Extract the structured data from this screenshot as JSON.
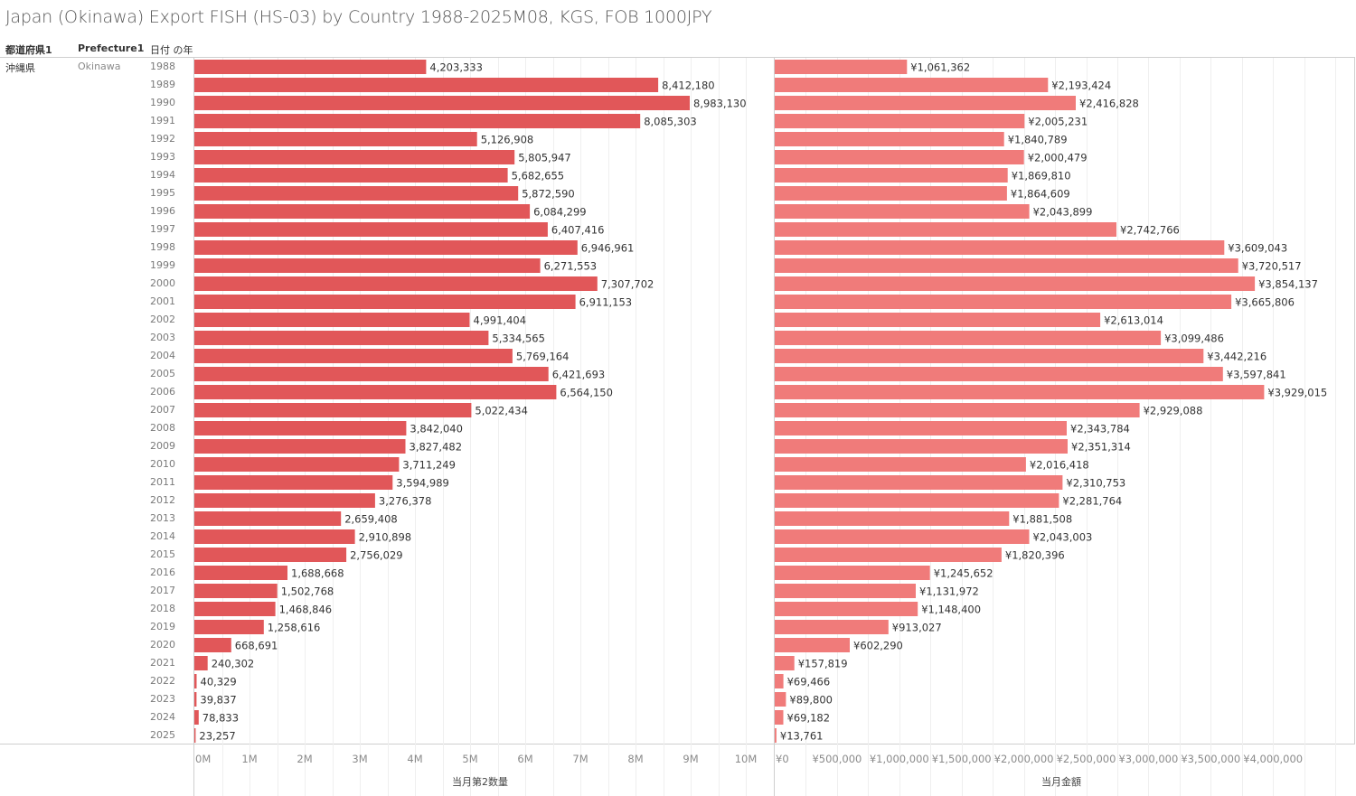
{
  "title": "Japan (Okinawa) Export FISH (HS-03) by Country 1988-2025M08, KGS, FOB 1000JPY",
  "headers": {
    "col1": "都道府県1",
    "col2": "Prefecture1",
    "col3": "日付 の年"
  },
  "row": {
    "prefecture_jp": "沖縄県",
    "prefecture_en": "Okinawa"
  },
  "colors": {
    "quantity_bar": "#e15759",
    "value_bar": "#f07b7a"
  },
  "chart_data": [
    {
      "type": "bar",
      "orientation": "horizontal",
      "title": "",
      "xlabel": "当月第2数量",
      "ylabel": "日付 の年",
      "xlim": [
        0,
        10500000
      ],
      "ticks": [
        "0M",
        "1M",
        "2M",
        "3M",
        "4M",
        "5M",
        "6M",
        "7M",
        "8M",
        "9M",
        "10M"
      ],
      "tick_values": [
        0,
        1000000,
        2000000,
        3000000,
        4000000,
        5000000,
        6000000,
        7000000,
        8000000,
        9000000,
        10000000
      ],
      "grid": true,
      "categories": [
        "1988",
        "1989",
        "1990",
        "1991",
        "1992",
        "1993",
        "1994",
        "1995",
        "1996",
        "1997",
        "1998",
        "1999",
        "2000",
        "2001",
        "2002",
        "2003",
        "2004",
        "2005",
        "2006",
        "2007",
        "2008",
        "2009",
        "2010",
        "2011",
        "2012",
        "2013",
        "2014",
        "2015",
        "2016",
        "2017",
        "2018",
        "2019",
        "2020",
        "2021",
        "2022",
        "2023",
        "2024",
        "2025"
      ],
      "values": [
        4203333,
        8412180,
        8983130,
        8085303,
        5126908,
        5805947,
        5682655,
        5872590,
        6084299,
        6407416,
        6946961,
        6271553,
        7307702,
        6911153,
        4991404,
        5334565,
        5769164,
        6421693,
        6564150,
        5022434,
        3842040,
        3827482,
        3711249,
        3594989,
        3276378,
        2659408,
        2910898,
        2756029,
        1688668,
        1502768,
        1468846,
        1258616,
        668691,
        240302,
        40329,
        39837,
        78833,
        23257
      ],
      "labels": [
        "4,203,333",
        "8,412,180",
        "8,983,130",
        "8,085,303",
        "5,126,908",
        "5,805,947",
        "5,682,655",
        "5,872,590",
        "6,084,299",
        "6,407,416",
        "6,946,961",
        "6,271,553",
        "7,307,702",
        "6,911,153",
        "4,991,404",
        "5,334,565",
        "5,769,164",
        "6,421,693",
        "6,564,150",
        "5,022,434",
        "3,842,040",
        "3,827,482",
        "3,711,249",
        "3,594,989",
        "3,276,378",
        "2,659,408",
        "2,910,898",
        "2,756,029",
        "1,688,668",
        "1,502,768",
        "1,468,846",
        "1,258,616",
        "668,691",
        "240,302",
        "40,329",
        "39,837",
        "78,833",
        "23,257"
      ]
    },
    {
      "type": "bar",
      "orientation": "horizontal",
      "title": "",
      "xlabel": "当月金額",
      "ylabel": "日付 の年",
      "xlim": [
        0,
        4650000
      ],
      "ticks": [
        "¥0",
        "¥500,000",
        "¥1,000,000",
        "¥1,500,000",
        "¥2,000,000",
        "¥2,500,000",
        "¥3,000,000",
        "¥3,500,000",
        "¥4,000,000"
      ],
      "tick_values": [
        0,
        500000,
        1000000,
        1500000,
        2000000,
        2500000,
        3000000,
        3500000,
        4000000
      ],
      "grid": true,
      "categories": [
        "1988",
        "1989",
        "1990",
        "1991",
        "1992",
        "1993",
        "1994",
        "1995",
        "1996",
        "1997",
        "1998",
        "1999",
        "2000",
        "2001",
        "2002",
        "2003",
        "2004",
        "2005",
        "2006",
        "2007",
        "2008",
        "2009",
        "2010",
        "2011",
        "2012",
        "2013",
        "2014",
        "2015",
        "2016",
        "2017",
        "2018",
        "2019",
        "2020",
        "2021",
        "2022",
        "2023",
        "2024",
        "2025"
      ],
      "values": [
        1061362,
        2193424,
        2416828,
        2005231,
        1840789,
        2000479,
        1869810,
        1864609,
        2043899,
        2742766,
        3609043,
        3720517,
        3854137,
        3665806,
        2613014,
        3099486,
        3442216,
        3597841,
        3929015,
        2929088,
        2343784,
        2351314,
        2016418,
        2310753,
        2281764,
        1881508,
        2043003,
        1820396,
        1245652,
        1131972,
        1148400,
        913027,
        602290,
        157819,
        69466,
        89800,
        69182,
        13761
      ],
      "labels": [
        "¥1,061,362",
        "¥2,193,424",
        "¥2,416,828",
        "¥2,005,231",
        "¥1,840,789",
        "¥2,000,479",
        "¥1,869,810",
        "¥1,864,609",
        "¥2,043,899",
        "¥2,742,766",
        "¥3,609,043",
        "¥3,720,517",
        "¥3,854,137",
        "¥3,665,806",
        "¥2,613,014",
        "¥3,099,486",
        "¥3,442,216",
        "¥3,597,841",
        "¥3,929,015",
        "¥2,929,088",
        "¥2,343,784",
        "¥2,351,314",
        "¥2,016,418",
        "¥2,310,753",
        "¥2,281,764",
        "¥1,881,508",
        "¥2,043,003",
        "¥1,820,396",
        "¥1,245,652",
        "¥1,131,972",
        "¥1,148,400",
        "¥913,027",
        "¥602,290",
        "¥157,819",
        "¥69,466",
        "¥89,800",
        "¥69,182",
        "¥13,761"
      ]
    }
  ]
}
